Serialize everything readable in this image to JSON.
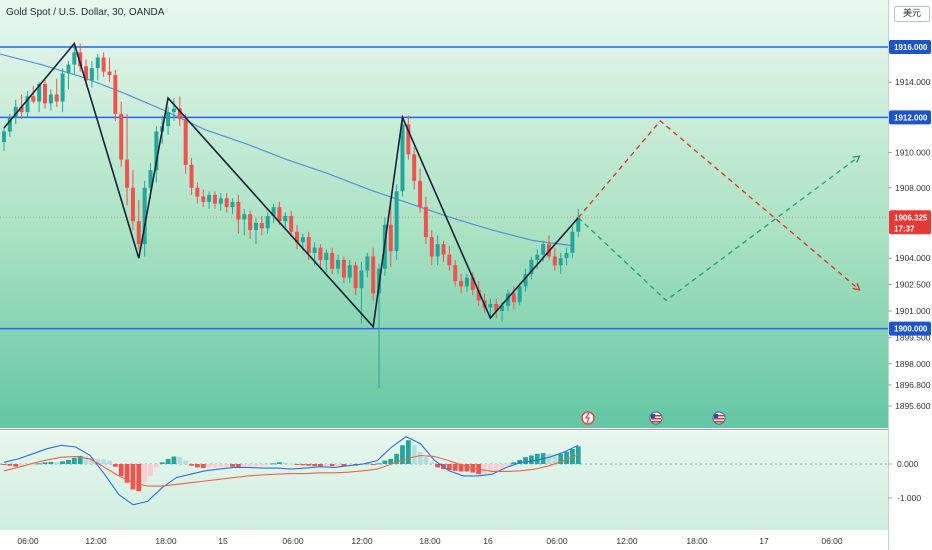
{
  "header": {
    "title": "Gold Spot / U.S. Dollar, 30, OANDA",
    "currency_button": "美元"
  },
  "colors": {
    "up": "#26a69a",
    "down": "#ef5350",
    "level_line": "#2962ff",
    "ma": "#5b8fd6",
    "zigzag": "#1a2238",
    "proj_up": "#2a9d6a",
    "proj_down": "#e0302a",
    "price_badge": "#e53935",
    "macd_line": "#2f6fd8",
    "signal_line": "#e8664a"
  },
  "chart_data": [
    {
      "type": "candlestick",
      "title": "Gold Spot / U.S. Dollar, 30, OANDA",
      "ylim": [
        1895.0,
        1918.5
      ],
      "y_ticks": [
        "1914.000",
        "1910.000",
        "1908.000",
        "1904.000",
        "1902.500",
        "1901.000",
        "1899.500",
        "1898.000",
        "1896.800",
        "1895.600"
      ],
      "x_ticks": [
        "06:00",
        "12:00",
        "18:00",
        "15",
        "06:00",
        "12:00",
        "18:00",
        "16",
        "06:00",
        "12:00",
        "18:00",
        "17",
        "06:00"
      ],
      "horizontal_levels": [
        {
          "value": 1916.0,
          "label": "1916.000"
        },
        {
          "value": 1912.0,
          "label": "1912.000"
        },
        {
          "value": 1900.0,
          "label": "1900.000"
        }
      ],
      "current_price": {
        "value": 1906.325,
        "label": "1906.325",
        "countdown": "17:37"
      },
      "candles": [
        [
          1910.6,
          1911.4,
          1910.1,
          1911.2
        ],
        [
          1911.2,
          1912.2,
          1910.9,
          1912.0
        ],
        [
          1912.0,
          1913.0,
          1911.6,
          1912.6
        ],
        [
          1912.6,
          1913.3,
          1911.9,
          1912.3
        ],
        [
          1912.3,
          1913.5,
          1912.0,
          1913.2
        ],
        [
          1913.2,
          1913.8,
          1912.8,
          1912.9
        ],
        [
          1912.9,
          1914.0,
          1912.3,
          1913.9
        ],
        [
          1913.9,
          1914.1,
          1912.5,
          1912.8
        ],
        [
          1912.8,
          1913.6,
          1912.4,
          1913.3
        ],
        [
          1913.3,
          1914.2,
          1912.6,
          1912.9
        ],
        [
          1912.9,
          1914.8,
          1912.3,
          1914.5
        ],
        [
          1914.5,
          1915.2,
          1913.6,
          1915.0
        ],
        [
          1915.0,
          1916.0,
          1914.4,
          1915.7
        ],
        [
          1915.7,
          1916.2,
          1914.6,
          1914.9
        ],
        [
          1914.9,
          1915.3,
          1913.8,
          1914.1
        ],
        [
          1914.1,
          1915.2,
          1913.7,
          1914.8
        ],
        [
          1914.8,
          1915.6,
          1914.1,
          1915.4
        ],
        [
          1915.4,
          1915.7,
          1914.3,
          1914.6
        ],
        [
          1914.6,
          1915.4,
          1914.0,
          1914.4
        ],
        [
          1914.4,
          1914.7,
          1911.8,
          1912.2
        ],
        [
          1912.2,
          1912.9,
          1909.2,
          1909.6
        ],
        [
          1909.6,
          1912.2,
          1907.0,
          1908.0
        ],
        [
          1908.0,
          1909.0,
          1905.6,
          1906.1
        ],
        [
          1906.1,
          1907.3,
          1904.5,
          1904.8
        ],
        [
          1904.8,
          1908.4,
          1904.1,
          1908.0
        ],
        [
          1908.0,
          1909.4,
          1907.4,
          1909.0
        ],
        [
          1909.0,
          1911.5,
          1908.3,
          1911.2
        ],
        [
          1911.2,
          1912.1,
          1910.5,
          1911.5
        ],
        [
          1911.5,
          1912.6,
          1911.0,
          1912.3
        ],
        [
          1912.3,
          1913.1,
          1911.8,
          1912.5
        ],
        [
          1912.5,
          1913.2,
          1911.5,
          1911.9
        ],
        [
          1911.9,
          1912.2,
          1908.8,
          1909.3
        ],
        [
          1909.3,
          1909.7,
          1907.6,
          1908.0
        ],
        [
          1908.0,
          1908.3,
          1907.1,
          1907.5
        ],
        [
          1907.5,
          1907.9,
          1906.9,
          1907.2
        ],
        [
          1907.2,
          1907.8,
          1906.8,
          1907.6
        ],
        [
          1907.6,
          1907.8,
          1906.8,
          1907.1
        ],
        [
          1907.1,
          1907.7,
          1906.7,
          1907.4
        ],
        [
          1907.4,
          1907.7,
          1906.6,
          1906.9
        ],
        [
          1906.9,
          1907.4,
          1906.5,
          1907.2
        ],
        [
          1907.2,
          1907.6,
          1905.4,
          1906.2
        ],
        [
          1906.2,
          1906.8,
          1905.3,
          1906.5
        ],
        [
          1906.5,
          1906.7,
          1905.1,
          1905.6
        ],
        [
          1905.6,
          1906.3,
          1904.8,
          1906.0
        ],
        [
          1906.0,
          1906.4,
          1905.3,
          1905.7
        ],
        [
          1905.7,
          1906.6,
          1905.4,
          1906.4
        ],
        [
          1906.4,
          1907.1,
          1906.0,
          1906.9
        ],
        [
          1906.9,
          1907.2,
          1905.9,
          1906.1
        ],
        [
          1906.1,
          1906.6,
          1905.6,
          1906.4
        ],
        [
          1906.4,
          1906.7,
          1905.2,
          1905.5
        ],
        [
          1905.5,
          1905.9,
          1904.5,
          1904.9
        ],
        [
          1904.9,
          1905.4,
          1904.4,
          1905.2
        ],
        [
          1905.2,
          1905.5,
          1903.9,
          1904.3
        ],
        [
          1904.3,
          1904.9,
          1903.6,
          1904.6
        ],
        [
          1904.6,
          1904.8,
          1903.4,
          1903.9
        ],
        [
          1903.9,
          1904.5,
          1903.2,
          1904.3
        ],
        [
          1904.3,
          1904.6,
          1903.1,
          1903.4
        ],
        [
          1903.4,
          1904.2,
          1903.1,
          1903.9
        ],
        [
          1903.9,
          1904.1,
          1902.6,
          1902.9
        ],
        [
          1902.9,
          1903.9,
          1902.6,
          1903.6
        ],
        [
          1903.6,
          1903.8,
          1901.9,
          1902.3
        ],
        [
          1902.3,
          1903.8,
          1900.3,
          1903.3
        ],
        [
          1903.3,
          1904.3,
          1902.9,
          1904.1
        ],
        [
          1904.1,
          1904.6,
          1901.6,
          1902.0
        ],
        [
          1902.0,
          1903.7,
          1896.6,
          1903.4
        ],
        [
          1903.4,
          1906.3,
          1903.0,
          1905.9
        ],
        [
          1905.9,
          1907.2,
          1903.5,
          1904.4
        ],
        [
          1904.4,
          1908.2,
          1903.9,
          1907.8
        ],
        [
          1907.8,
          1912.0,
          1907.5,
          1911.6
        ],
        [
          1911.6,
          1912.1,
          1909.6,
          1909.9
        ],
        [
          1909.9,
          1910.3,
          1907.9,
          1908.4
        ],
        [
          1908.4,
          1909.1,
          1906.6,
          1906.9
        ],
        [
          1906.9,
          1907.5,
          1904.8,
          1905.2
        ],
        [
          1905.2,
          1905.6,
          1903.6,
          1904.1
        ],
        [
          1904.1,
          1905.3,
          1903.6,
          1904.8
        ],
        [
          1904.8,
          1905.0,
          1903.8,
          1904.2
        ],
        [
          1904.2,
          1904.7,
          1903.3,
          1903.6
        ],
        [
          1903.6,
          1903.9,
          1902.4,
          1902.7
        ],
        [
          1902.7,
          1903.1,
          1902.0,
          1902.4
        ],
        [
          1902.4,
          1903.1,
          1902.1,
          1902.9
        ],
        [
          1902.9,
          1903.2,
          1901.9,
          1902.2
        ],
        [
          1902.2,
          1902.7,
          1901.3,
          1901.6
        ],
        [
          1901.6,
          1902.0,
          1900.9,
          1901.2
        ],
        [
          1901.2,
          1901.7,
          1900.7,
          1901.4
        ],
        [
          1901.4,
          1901.7,
          1900.6,
          1901.0
        ],
        [
          1901.0,
          1901.5,
          1900.4,
          1901.3
        ],
        [
          1901.3,
          1902.2,
          1901.0,
          1902.0
        ],
        [
          1902.0,
          1902.4,
          1901.1,
          1901.5
        ],
        [
          1901.5,
          1902.6,
          1901.3,
          1902.4
        ],
        [
          1902.4,
          1903.4,
          1902.1,
          1903.1
        ],
        [
          1903.1,
          1904.1,
          1902.8,
          1903.9
        ],
        [
          1903.9,
          1904.5,
          1903.4,
          1904.2
        ],
        [
          1904.2,
          1905.0,
          1903.8,
          1904.8
        ],
        [
          1904.8,
          1905.3,
          1903.9,
          1904.1
        ],
        [
          1904.1,
          1904.6,
          1903.3,
          1903.6
        ],
        [
          1903.6,
          1904.3,
          1903.1,
          1904.0
        ],
        [
          1904.0,
          1904.6,
          1903.6,
          1904.3
        ],
        [
          1904.3,
          1905.8,
          1904.0,
          1905.5
        ],
        [
          1905.5,
          1906.8,
          1905.2,
          1906.3
        ]
      ],
      "moving_average": [
        1915.6,
        1915.0,
        1914.3,
        1913.4,
        1912.4,
        1911.3,
        1910.5,
        1909.6,
        1908.8,
        1907.9,
        1907.1,
        1906.3,
        1905.6,
        1905.0,
        1904.7
      ],
      "zigzag": [
        [
          0,
          1911.4
        ],
        [
          12,
          1916.2
        ],
        [
          23,
          1904.0
        ],
        [
          28,
          1913.1
        ],
        [
          63,
          1900.1
        ],
        [
          68,
          1912.0
        ],
        [
          83,
          1900.6
        ],
        [
          98,
          1906.3
        ]
      ],
      "projections": [
        {
          "color": "proj_down",
          "points": [
            [
              98,
              1906.3
            ],
            [
              112,
              1911.8
            ],
            [
              146,
              1902.2
            ]
          ]
        },
        {
          "color": "proj_up",
          "points": [
            [
              98,
              1906.3
            ],
            [
              113,
              1901.6
            ],
            [
              146,
              1909.8
            ]
          ]
        }
      ]
    },
    {
      "type": "bar",
      "y_ticks": [
        "0.000",
        "-1.000"
      ],
      "ylim": [
        -1.55,
        0.8
      ],
      "histogram": [
        -0.02,
        -0.05,
        -0.08,
        -0.06,
        -0.03,
        -0.01,
        0.02,
        0.05,
        0.06,
        0.05,
        0.08,
        0.12,
        0.18,
        0.24,
        0.22,
        0.18,
        0.15,
        0.14,
        0.1,
        -0.08,
        -0.35,
        -0.55,
        -0.75,
        -0.8,
        -0.55,
        -0.35,
        -0.1,
        0.05,
        0.15,
        0.22,
        0.2,
        0.1,
        -0.05,
        -0.1,
        -0.12,
        -0.11,
        -0.1,
        -0.09,
        -0.08,
        -0.08,
        -0.1,
        -0.08,
        -0.07,
        -0.06,
        -0.05,
        -0.04,
        0.02,
        0.05,
        0.04,
        0.02,
        -0.02,
        -0.04,
        -0.05,
        -0.06,
        -0.07,
        -0.06,
        -0.06,
        -0.05,
        -0.06,
        -0.04,
        -0.05,
        -0.02,
        0.02,
        -0.01,
        0.02,
        0.1,
        0.15,
        0.3,
        0.55,
        0.7,
        0.55,
        0.35,
        0.2,
        0.05,
        -0.1,
        -0.15,
        -0.18,
        -0.2,
        -0.22,
        -0.22,
        -0.25,
        -0.3,
        -0.28,
        -0.25,
        -0.2,
        -0.15,
        -0.05,
        0.05,
        0.12,
        0.2,
        0.25,
        0.3,
        0.32,
        0.3,
        0.28,
        0.3,
        0.36,
        0.44,
        0.52
      ],
      "macd": [
        0.05,
        0.15,
        0.3,
        0.45,
        0.55,
        0.5,
        0.25,
        -0.3,
        -0.9,
        -1.2,
        -1.1,
        -0.7,
        -0.4,
        -0.3,
        -0.2,
        -0.15,
        -0.1,
        -0.1,
        -0.12,
        -0.12,
        -0.15,
        -0.12,
        -0.08,
        -0.1,
        -0.05,
        0.0,
        0.1,
        0.5,
        0.8,
        0.6,
        0.1,
        -0.2,
        -0.35,
        -0.35,
        -0.3,
        -0.1,
        0.05,
        0.1,
        0.2,
        0.35,
        0.55
      ],
      "signal": [
        -0.2,
        -0.1,
        0.02,
        0.12,
        0.2,
        0.22,
        0.15,
        -0.1,
        -0.35,
        -0.55,
        -0.65,
        -0.65,
        -0.6,
        -0.55,
        -0.5,
        -0.45,
        -0.4,
        -0.35,
        -0.32,
        -0.3,
        -0.28,
        -0.28,
        -0.26,
        -0.26,
        -0.24,
        -0.2,
        -0.15,
        0.0,
        0.15,
        0.25,
        0.22,
        0.1,
        -0.05,
        -0.15,
        -0.22,
        -0.22,
        -0.2,
        -0.15,
        -0.05,
        0.1,
        0.28
      ]
    }
  ]
}
